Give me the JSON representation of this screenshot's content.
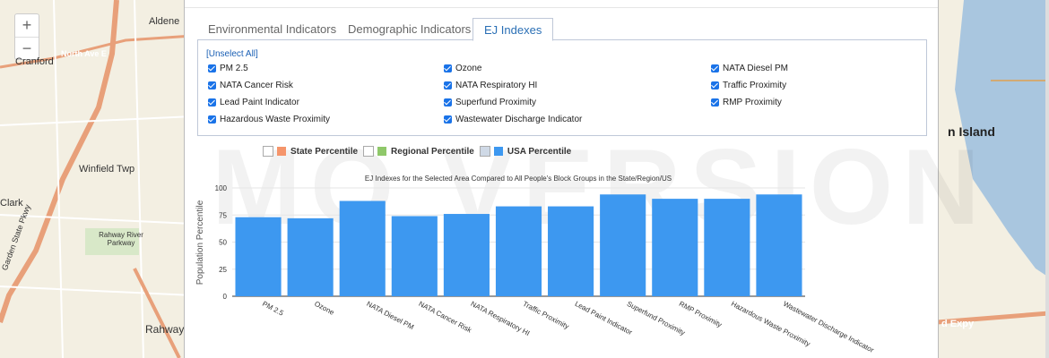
{
  "map_left": {
    "labels": [
      {
        "text": "Aldene"
      },
      {
        "text": "Cranford"
      },
      {
        "text": "North Ave E"
      },
      {
        "text": "Winfield Twp"
      },
      {
        "text": "Rahway River Parkway"
      },
      {
        "text": "Rahway"
      },
      {
        "text": "Garden State Pkwy"
      },
      {
        "text": "Clark"
      }
    ],
    "zoom_in": "+",
    "zoom_out": "−"
  },
  "map_right": {
    "labels": [
      {
        "text": "n Island"
      },
      {
        "text": "d Expy"
      }
    ]
  },
  "tabs": [
    {
      "label": "Environmental Indicators"
    },
    {
      "label": "Demographic Indicators"
    },
    {
      "label": "EJ Indexes"
    }
  ],
  "unselect_all": "[Unselect All]",
  "checkboxes": [
    {
      "label": "PM 2.5"
    },
    {
      "label": "Ozone"
    },
    {
      "label": "NATA Diesel PM"
    },
    {
      "label": "NATA Cancer Risk"
    },
    {
      "label": "NATA Respiratory HI"
    },
    {
      "label": "Traffic Proximity"
    },
    {
      "label": "Lead Paint Indicator"
    },
    {
      "label": "Superfund Proximity"
    },
    {
      "label": "RMP Proximity"
    },
    {
      "label": "Hazardous Waste Proximity"
    },
    {
      "label": "Wastewater Discharge Indicator"
    }
  ],
  "watermark": "MO VERSION",
  "legend": [
    {
      "label": "State Percentile",
      "color": "#f5956b",
      "checked": false
    },
    {
      "label": "Regional Percentile",
      "color": "#8fc86a",
      "checked": false
    },
    {
      "label": "USA Percentile",
      "color": "#3d98f0",
      "checked": true
    }
  ],
  "chart_data": {
    "type": "bar",
    "title": "EJ Indexes for the Selected Area Compared to All People's Block Groups in the State/Region/US",
    "ylabel": "Population Percentile",
    "ylim": [
      0,
      100
    ],
    "yticks": [
      0,
      25,
      50,
      75,
      100
    ],
    "categories": [
      "PM 2.5",
      "Ozone",
      "NATA Diesel PM",
      "NATA Cancer Risk",
      "NATA Respiratory HI",
      "Traffic Proximity",
      "Lead Paint Indicator",
      "Superfund Proximity",
      "RMP Proximity",
      "Hazardous Waste Proximity",
      "Wastewater Discharge Indicator"
    ],
    "series": [
      {
        "name": "USA Percentile",
        "color": "#3d98f0",
        "values": [
          73,
          72,
          88,
          74,
          76,
          83,
          83,
          94,
          90,
          90,
          94
        ]
      }
    ]
  }
}
